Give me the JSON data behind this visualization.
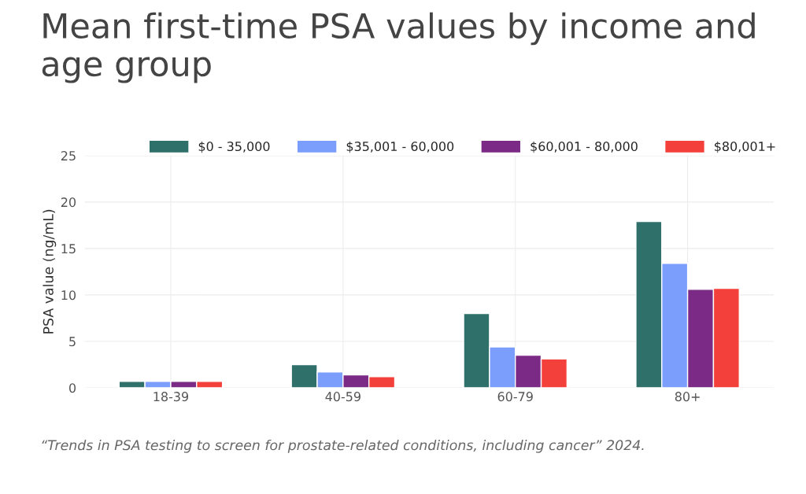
{
  "chart_data": {
    "type": "bar",
    "title": "Mean first-time PSA values by income and age group",
    "categories": [
      "18-39",
      "40-59",
      "60-79",
      "80+"
    ],
    "series": [
      {
        "name": "$0 - 35,000",
        "color": "#2f706a",
        "values": [
          0.7,
          2.5,
          8.0,
          17.9
        ]
      },
      {
        "name": "$35,001 - 60,000",
        "color": "#7b9dfc",
        "values": [
          0.7,
          1.7,
          4.4,
          13.4
        ]
      },
      {
        "name": "$60,001 - 80,000",
        "color": "#7b2a85",
        "values": [
          0.7,
          1.4,
          3.5,
          10.6
        ]
      },
      {
        "name": "$80,001+",
        "color": "#f4403a",
        "values": [
          0.7,
          1.2,
          3.1,
          10.7
        ]
      }
    ],
    "ylabel": "PSA value (ng/mL)",
    "ylim": [
      0,
      25
    ],
    "yticks": [
      0,
      5,
      10,
      15,
      20,
      25
    ],
    "grid": true,
    "legend": "top right",
    "annotations": [
      "“Trends in PSA testing to screen for prostate-related conditions, including cancer” 2024."
    ]
  }
}
